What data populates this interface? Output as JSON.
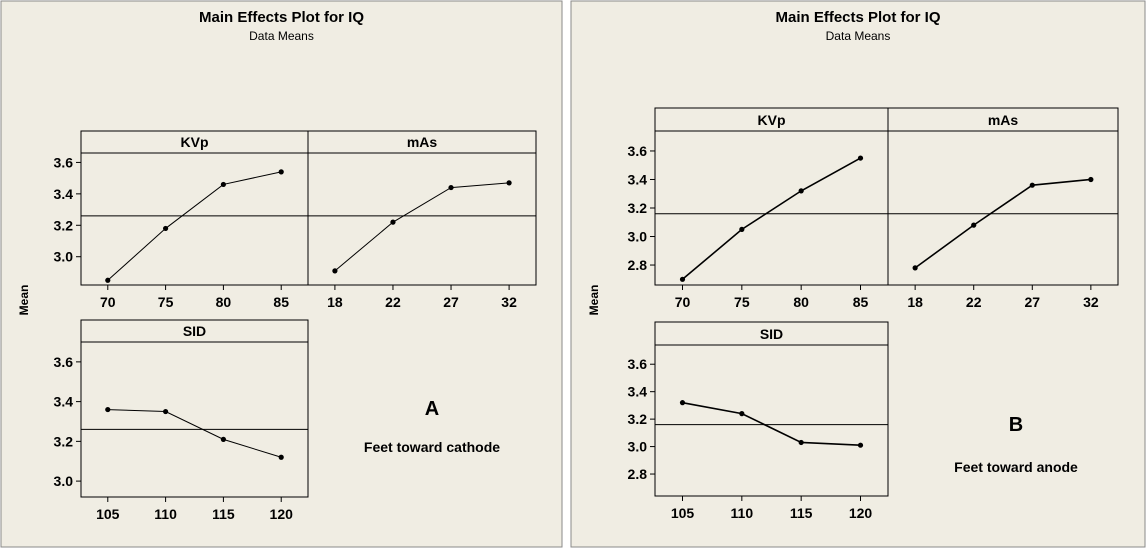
{
  "colors": {
    "panel_bg": "#f0ede3",
    "outer_bg": "#ffffff",
    "line": "#000000"
  },
  "chart_data": [
    {
      "type": "line",
      "title": "Main Effects Plot for IQ",
      "subtitle": "Data Means",
      "ylabel": "Mean",
      "letter": "A",
      "caption": "Feet toward cathode",
      "reference_line": 3.26,
      "facets": [
        {
          "label": "KVp",
          "x": [
            "70",
            "75",
            "80",
            "85"
          ],
          "values": [
            2.85,
            3.18,
            3.46,
            3.54
          ]
        },
        {
          "label": "mAs",
          "x": [
            "18",
            "22",
            "27",
            "32"
          ],
          "values": [
            2.91,
            3.22,
            3.44,
            3.47
          ]
        },
        {
          "label": "SID",
          "x": [
            "105",
            "110",
            "115",
            "120"
          ],
          "values": [
            3.36,
            3.35,
            3.21,
            3.12
          ]
        }
      ],
      "yticks_top": [
        "3.6",
        "3.4",
        "3.2",
        "3.0"
      ],
      "yticks_bottom": [
        "3.6",
        "3.4",
        "3.2",
        "3.0"
      ],
      "ylim": [
        2.82,
        3.66
      ]
    },
    {
      "type": "line",
      "title": "Main Effects Plot for IQ",
      "subtitle": "Data Means",
      "ylabel": "Mean",
      "letter": "B",
      "caption": "Feet toward anode",
      "reference_line": 3.16,
      "facets": [
        {
          "label": "KVp",
          "x": [
            "70",
            "75",
            "80",
            "85"
          ],
          "values": [
            2.7,
            3.05,
            3.32,
            3.55
          ]
        },
        {
          "label": "mAs",
          "x": [
            "18",
            "22",
            "27",
            "32"
          ],
          "values": [
            2.78,
            3.08,
            3.36,
            3.4
          ]
        },
        {
          "label": "SID",
          "x": [
            "105",
            "110",
            "115",
            "120"
          ],
          "values": [
            3.32,
            3.24,
            3.03,
            3.01
          ]
        }
      ],
      "yticks_top": [
        "3.6",
        "3.4",
        "3.2",
        "3.0",
        "2.8"
      ],
      "yticks_bottom": [
        "3.6",
        "3.4",
        "3.2",
        "3.0",
        "2.8"
      ],
      "ylim": [
        2.66,
        3.72
      ]
    }
  ]
}
